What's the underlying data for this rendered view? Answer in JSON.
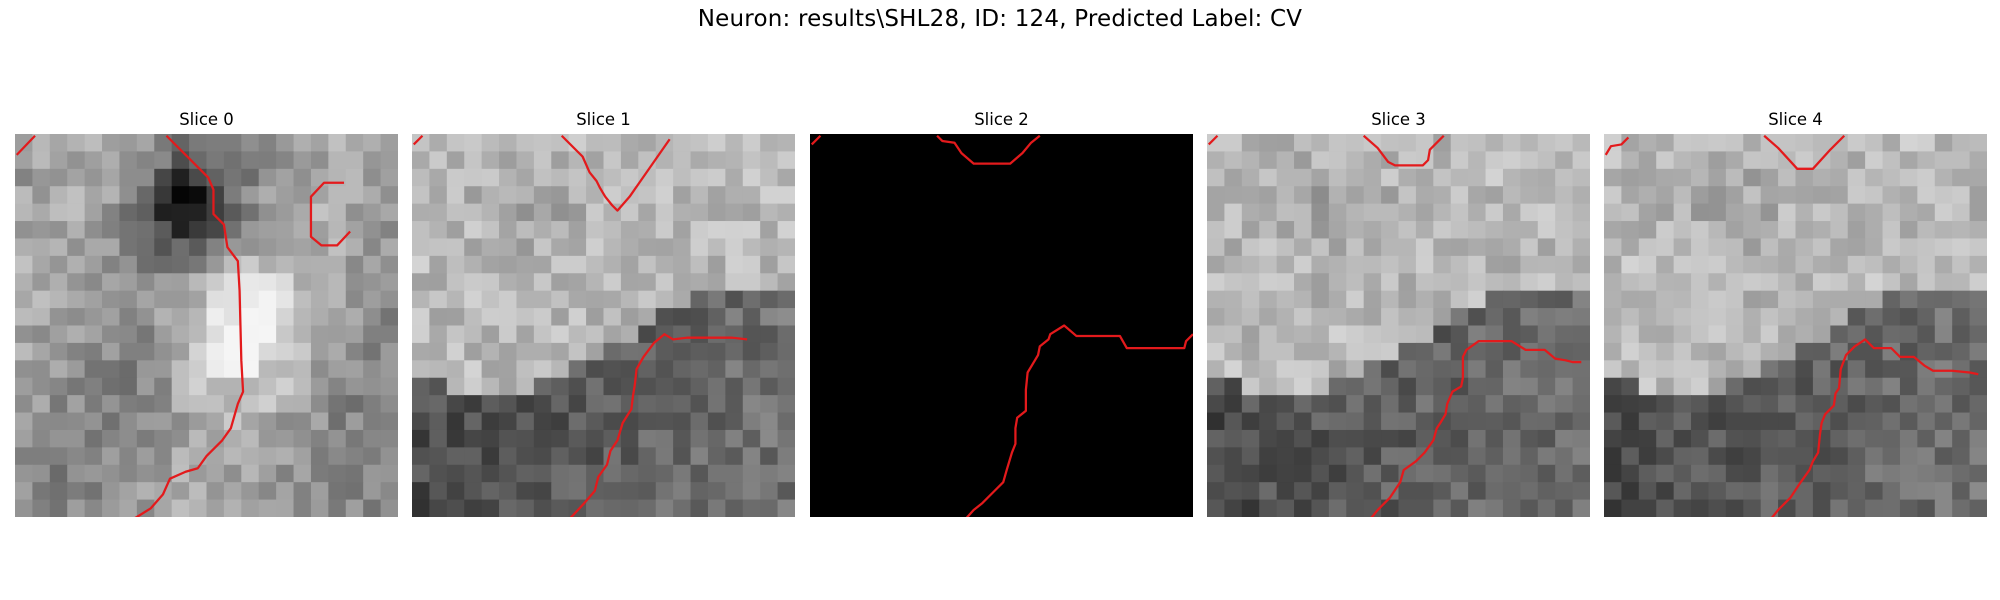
{
  "suptitle": "Neuron: results\\SHL28, ID: 124, Predicted Label: CV",
  "contour_color": "#e31a1c",
  "panels": [
    {
      "title": "Slice 0",
      "image": "grayscale-patch",
      "contours": [
        "M2,24 L23,2",
        "M174,2 L222,50 L228,64 L228,92 L240,104 L244,130 L256,146 L258,180 L260,260 L262,296 L256,310 L248,338 L238,352 L220,370 L210,384 L196,388 L178,396 L170,414 L156,430 L140,440 L122,450 L100,452",
        "M378,56 L355,56 L340,72 L340,118 L352,128 L370,128 L385,112"
      ]
    },
    {
      "title": "Slice 1",
      "image": "grayscale-patch",
      "contours": [
        "M2,12 L12,2",
        "M172,2 L196,26 L204,44 L212,54 L216,62 L222,72 L230,82 L236,88 L250,72 L296,6",
        "M172,452 L198,424 L210,410 L214,394 L224,380 L228,364 L236,352 L242,332 L252,316 L254,300 L256,288 L258,270 L266,256 L278,240 L290,230 L300,236 L316,234 L368,234 L385,236"
      ]
    },
    {
      "title": "Slice 2",
      "image": "black-patch",
      "contours": [
        "M2,12 L12,2",
        "M146,2 L152,8 L166,10 L174,22 L188,34 L208,34 L230,34 L244,22 L254,10 L264,2",
        "M170,452 L188,432 L198,424 L210,412 L222,400 L226,386 L232,366 L236,356 L236,338 L238,326 L248,318 L248,294 L250,274 L256,264 L262,254 L264,244 L274,236 L276,230 L292,220 L306,232 L332,232 L356,232 L364,246 L404,246 L430,246 L432,238 L440,230"
      ]
    },
    {
      "title": "Slice 3",
      "image": "grayscale-patch",
      "contours": [
        "M2,12 L12,2",
        "M180,2 L196,16 L208,32 L216,36 L248,36 L254,30 L256,18 L268,6 L272,2",
        "M180,452 L196,432 L210,418 L222,400 L226,386 L240,376 L250,366 L260,352 L264,338 L268,332 L274,322 L276,310 L282,296 L292,290 L294,280 L294,256 L298,248 L312,238 L336,238 L350,238 L366,248 L388,248 L400,258 L412,260 L420,262 L430,262"
      ]
    },
    {
      "title": "Slice 4",
      "image": "grayscale-patch",
      "contours": [
        "M2,24 L8,14 L20,12 L28,4",
        "M184,2 L200,16 L222,40 L240,40 L260,18 L276,2",
        "M184,452 L200,432 L214,418 L226,400 L236,386 L240,376 L246,366 L248,346 L250,332 L254,322 L264,312 L266,298 L270,292 L272,270 L278,254 L288,244 L300,236 L310,246 L330,246 L340,256 L356,256 L368,266 L378,272 L400,272 L420,274 L430,276"
      ]
    }
  ]
}
